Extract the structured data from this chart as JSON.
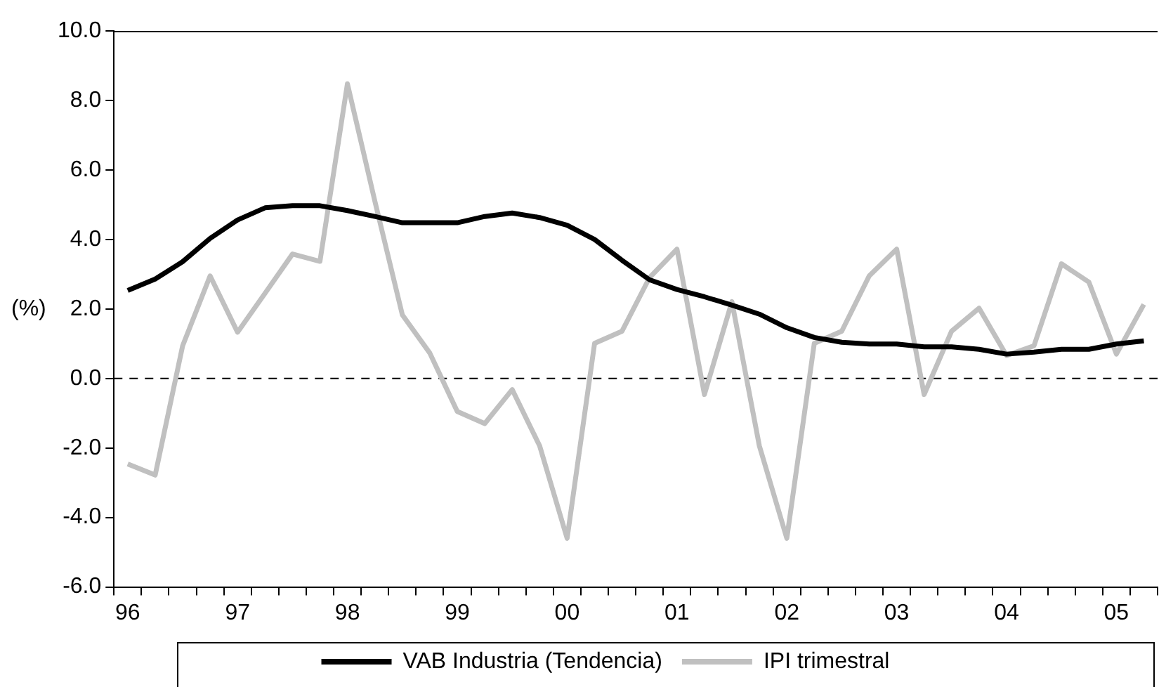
{
  "chart_data": {
    "type": "line",
    "categories": [
      "96",
      null,
      null,
      null,
      "97",
      null,
      null,
      null,
      "98",
      null,
      null,
      null,
      "99",
      null,
      null,
      null,
      "00",
      null,
      null,
      null,
      "01",
      null,
      null,
      null,
      "02",
      null,
      null,
      null,
      "03",
      null,
      null,
      null,
      "04",
      null,
      null,
      null,
      "05",
      null
    ],
    "series": [
      {
        "name": "VAB Industria (Tendencia)",
        "color": "#000000",
        "values": [
          2.53,
          2.86,
          3.36,
          4.03,
          4.56,
          4.91,
          4.97,
          4.97,
          4.83,
          4.66,
          4.48,
          4.48,
          4.48,
          4.66,
          4.76,
          4.63,
          4.41,
          4.0,
          3.4,
          2.84,
          2.56,
          2.35,
          2.11,
          1.85,
          1.46,
          1.18,
          1.04,
          0.99,
          0.99,
          0.91,
          0.91,
          0.84,
          0.7,
          0.76,
          0.84,
          0.84,
          0.99,
          1.08
        ]
      },
      {
        "name": "IPI trimestral",
        "color": "#c0c0c0",
        "values": [
          -2.46,
          -2.78,
          0.94,
          2.95,
          1.33,
          2.45,
          3.58,
          3.37,
          8.48,
          5.1,
          1.83,
          0.73,
          -0.95,
          -1.3,
          -0.32,
          -1.94,
          -4.6,
          1.01,
          1.36,
          2.9,
          3.72,
          -0.46,
          2.21,
          -1.94,
          -4.6,
          1.01,
          1.36,
          2.95,
          3.72,
          -0.46,
          1.36,
          2.02,
          0.66,
          0.94,
          3.3,
          2.77,
          0.7,
          2.13
        ]
      }
    ],
    "ylabel": "(%)",
    "ylim": [
      -6,
      10
    ],
    "yticks": [
      {
        "value": -6,
        "label": "-6.0"
      },
      {
        "value": -4,
        "label": "-4.0"
      },
      {
        "value": -2,
        "label": "-2.0"
      },
      {
        "value": 0,
        "label": "0.0"
      },
      {
        "value": 2,
        "label": "2.0"
      },
      {
        "value": 4,
        "label": "4.0"
      },
      {
        "value": 6,
        "label": "6.0"
      },
      {
        "value": 8,
        "label": "8.0"
      },
      {
        "value": 10,
        "label": "10.0"
      }
    ],
    "ref_lines": [
      {
        "axis": "y",
        "value": 0,
        "color": "#000000",
        "line_style": "dashed"
      }
    ],
    "grid": false,
    "legend": "bottom",
    "marker": "none",
    "line_style": "solid"
  }
}
